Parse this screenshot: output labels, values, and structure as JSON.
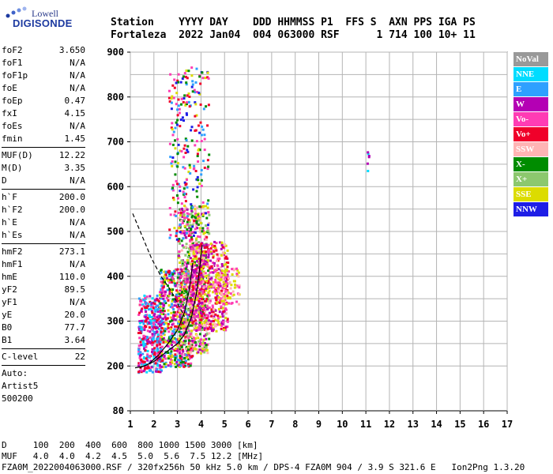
{
  "logo": {
    "line1": "Lowell",
    "line2": "DIGISONDE"
  },
  "header": {
    "line1": "Station    YYYY DAY    DDD HHMMSS P1  FFS S  AXN PPS IGA PS",
    "line2": "Fortaleza  2022 Jan04  004 063000 RSF      1 714 100 10+ 11"
  },
  "params": {
    "group1": [
      {
        "name": "foF2",
        "value": "3.650"
      },
      {
        "name": "foF1",
        "value": "N/A"
      },
      {
        "name": "foF1p",
        "value": "N/A"
      },
      {
        "name": "foE",
        "value": "N/A"
      },
      {
        "name": "foEp",
        "value": "0.47"
      },
      {
        "name": "fxI",
        "value": "4.15"
      },
      {
        "name": "foEs",
        "value": "N/A"
      },
      {
        "name": "fmin",
        "value": "1.45"
      }
    ],
    "group2": [
      {
        "name": "MUF(D)",
        "value": "12.22"
      },
      {
        "name": "M(D)",
        "value": "3.35"
      },
      {
        "name": "D",
        "value": "N/A"
      }
    ],
    "group3": [
      {
        "name": "h`F",
        "value": "200.0"
      },
      {
        "name": "h`F2",
        "value": "200.0"
      },
      {
        "name": "h`E",
        "value": "N/A"
      },
      {
        "name": "h`Es",
        "value": "N/A"
      }
    ],
    "group4": [
      {
        "name": "hmF2",
        "value": "273.1"
      },
      {
        "name": "hmF1",
        "value": "N/A"
      },
      {
        "name": "hmE",
        "value": "110.0"
      },
      {
        "name": "yF2",
        "value": "89.5"
      },
      {
        "name": "yF1",
        "value": "N/A"
      },
      {
        "name": "yE",
        "value": "20.0"
      },
      {
        "name": "B0",
        "value": "77.7"
      },
      {
        "name": "B1",
        "value": "3.64"
      }
    ],
    "clevel": {
      "name": "C-level",
      "value": "22"
    },
    "auto": [
      "Auto:",
      "Artist5",
      "500200"
    ]
  },
  "footer": {
    "line1": "D     100  200  400  600  800 1000 1500 3000 [km]",
    "line2": "MUF   4.0  4.0  4.2  4.5  5.0  5.6  7.5 12.2 [MHz]",
    "line3": "FZA0M_2022004063000.RSF / 320fx256h 50 kHz 5.0 km / DPS-4 FZA0M 904 / 3.9 S 321.6 E   Ion2Png 1.3.20"
  },
  "chart_data": {
    "type": "scatter",
    "x_ticks": [
      "1",
      "2",
      "3",
      "4",
      "5",
      "6",
      "7",
      "8",
      "9",
      "10",
      "11",
      "12",
      "13",
      "14",
      "15",
      "16",
      "17"
    ],
    "y_ticks": [
      "80",
      "200",
      "300",
      "400",
      "500",
      "600",
      "700",
      "800",
      "900"
    ],
    "xlim": [
      1,
      17
    ],
    "ylim": [
      80,
      900
    ],
    "y_tick_values": [
      80,
      200,
      300,
      400,
      500,
      600,
      700,
      800,
      900
    ],
    "grid": true,
    "legend_placement": "right",
    "legend": [
      {
        "label": "NoVal",
        "color": "#999999"
      },
      {
        "label": "NNE",
        "color": "#00dcff"
      },
      {
        "label": "E",
        "color": "#2ea0ff"
      },
      {
        "label": "W",
        "color": "#b400b4"
      },
      {
        "label": "Vo-",
        "color": "#ff3cb4"
      },
      {
        "label": "Vo+",
        "color": "#f0002a"
      },
      {
        "label": "SSW",
        "color": "#ffb4b4"
      },
      {
        "label": "X-",
        "color": "#008c00"
      },
      {
        "label": "X+",
        "color": "#8cc86e"
      },
      {
        "label": "SSE",
        "color": "#dcdc00"
      },
      {
        "label": "NNW",
        "color": "#1e1ee6"
      }
    ],
    "clusters": [
      {
        "x": [
          1.3,
          2.3
        ],
        "y": [
          185,
          360
        ],
        "n": 380,
        "colors": [
          "#f0002a",
          "#ff3cb4",
          "#2ea0ff",
          "#00dcff",
          "#b400b4"
        ]
      },
      {
        "x": [
          2.2,
          3.6
        ],
        "y": [
          200,
          420
        ],
        "n": 600,
        "colors": [
          "#2ea0ff",
          "#b400b4",
          "#ff3cb4",
          "#f0002a",
          "#008c00",
          "#dcdc00"
        ]
      },
      {
        "x": [
          3.0,
          4.3
        ],
        "y": [
          230,
          560
        ],
        "n": 650,
        "colors": [
          "#008c00",
          "#dcdc00",
          "#b400b4",
          "#ff3cb4",
          "#8cc86e",
          "#ffb4b4"
        ]
      },
      {
        "x": [
          3.5,
          5.1
        ],
        "y": [
          280,
          480
        ],
        "n": 600,
        "colors": [
          "#b400b4",
          "#ff3cb4",
          "#ffb4b4",
          "#dcdc00",
          "#f0002a"
        ]
      },
      {
        "x": [
          2.6,
          4.3
        ],
        "y": [
          480,
          870
        ],
        "n": 260,
        "colors": [
          "#dcdc00",
          "#008c00",
          "#f0002a",
          "#ff3cb4",
          "#2ea0ff",
          "#1e1ee6"
        ]
      },
      {
        "x": [
          4.6,
          5.6
        ],
        "y": [
          340,
          420
        ],
        "n": 80,
        "colors": [
          "#ffb4b4",
          "#ff3cb4",
          "#dcdc00"
        ]
      },
      {
        "x": [
          11.0,
          11.1
        ],
        "y": [
          620,
          680
        ],
        "n": 6,
        "colors": [
          "#00dcff",
          "#b400b4"
        ]
      }
    ],
    "curves": [
      {
        "style": "solid",
        "points": [
          [
            1.2,
            195
          ],
          [
            1.6,
            200
          ],
          [
            2.0,
            210
          ],
          [
            2.5,
            230
          ],
          [
            3.0,
            250
          ],
          [
            3.3,
            270
          ],
          [
            3.6,
            310
          ],
          [
            3.8,
            360
          ],
          [
            3.95,
            420
          ],
          [
            4.05,
            470
          ]
        ]
      },
      {
        "style": "solid",
        "points": [
          [
            1.4,
            195
          ],
          [
            1.8,
            205
          ],
          [
            2.2,
            225
          ],
          [
            2.6,
            250
          ],
          [
            3.0,
            280
          ],
          [
            3.3,
            320
          ],
          [
            3.5,
            370
          ],
          [
            3.65,
            430
          ]
        ]
      },
      {
        "style": "dashed",
        "points": [
          [
            1.1,
            540
          ],
          [
            1.5,
            490
          ],
          [
            1.9,
            440
          ],
          [
            2.3,
            400
          ],
          [
            2.7,
            370
          ],
          [
            3.0,
            340
          ],
          [
            3.3,
            310
          ]
        ]
      }
    ]
  }
}
